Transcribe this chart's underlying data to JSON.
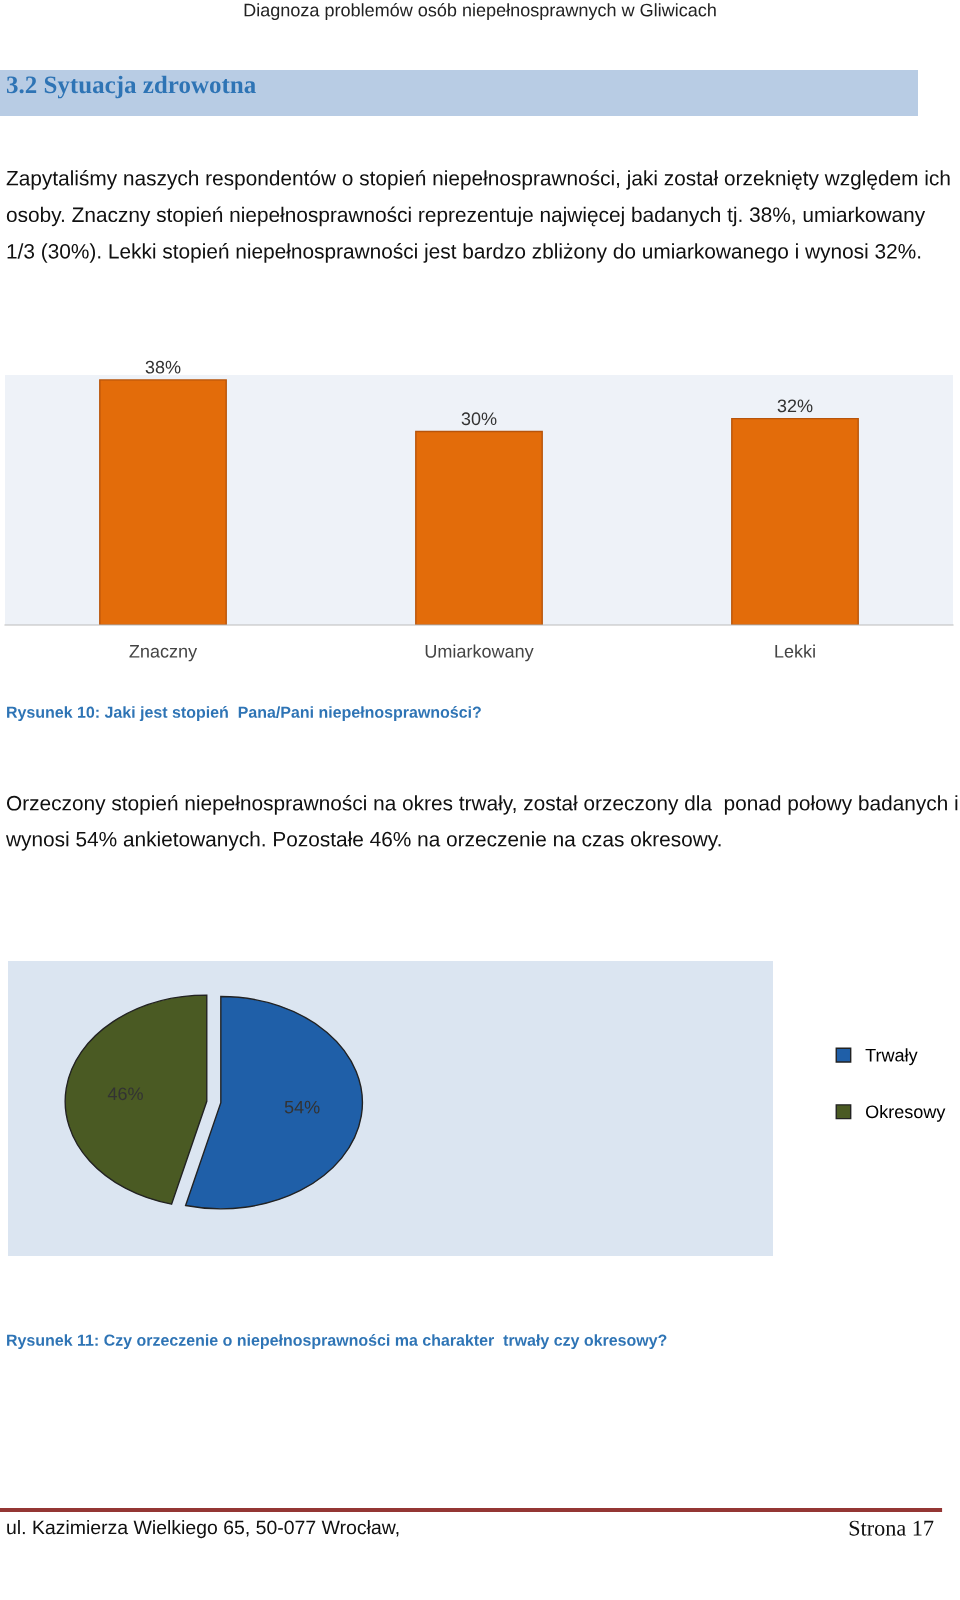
{
  "chart_data": [
    {
      "type": "bar",
      "title": "3.2 Sytuacja zdrowotna",
      "annotations": [
        "Diagnoza problemów osób niepełnosprawnych w Gliwicach",
        "Zapytaliśmy naszych respondentów o stopień niepełnosprawności, jaki został orzeknięty względem ich osoby. Znaczny stopień niepełnosprawności reprezentuje najwięcej badanych tj. 38%, umiarkowany 1/3 (30%). Lekki stopień niepełnosprawności jest bardzo zbliżony do umiarkowanego i wynosi 32%.",
        "Rysunek 10: Jaki jest stopień  Pana/Pani niepełnosprawności?"
      ],
      "categories": [
        "Znaczny",
        "Umiarkowany",
        "Lekki"
      ],
      "values": [
        38,
        30,
        32
      ],
      "value_labels": [
        "38%",
        "30%",
        "32%"
      ],
      "color": "#e36c0a",
      "grid": false
    },
    {
      "type": "pie",
      "annotations": [
        "Orzeczony stopień niepełnosprawności na okres trwały, został orzeczony dla  ponad połowy badanych i wynosi 54% ankietowanych. Pozostałe 46% na orzeczenie na czas okresowy.",
        "Rysunek 11: Czy orzeczenie o niepełnosprawności ma charakter  trwały czy okresowy?",
        "ul. Kazimierza Wielkiego 65, 50-077 Wrocław,",
        "Strona 17"
      ],
      "categories": [
        "Trwały",
        "Okresowy"
      ],
      "values": [
        54,
        46
      ],
      "value_labels": [
        "54%",
        "46%"
      ],
      "colors": [
        "#1f5fa8",
        "#4a5a23"
      ],
      "legend": "right"
    }
  ]
}
